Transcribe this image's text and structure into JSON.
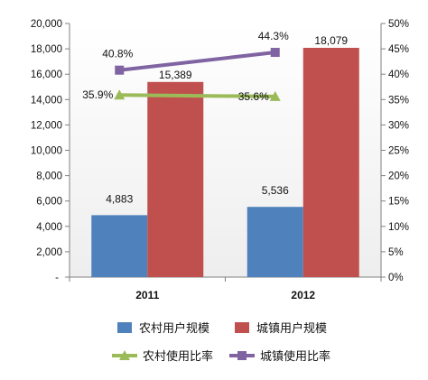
{
  "chart_data": {
    "type": "bar",
    "categories": [
      "2011",
      "2012"
    ],
    "y_left": {
      "range": [
        0,
        20000
      ],
      "ticks": [
        "-",
        "2,000",
        "4,000",
        "6,000",
        "8,000",
        "10,000",
        "12,000",
        "14,000",
        "16,000",
        "18,000",
        "20,000"
      ]
    },
    "y_right": {
      "range": [
        0,
        50
      ],
      "unit": "%",
      "ticks": [
        "0%",
        "5%",
        "10%",
        "15%",
        "20%",
        "25%",
        "30%",
        "35%",
        "40%",
        "45%",
        "50%"
      ]
    },
    "bar_series": [
      {
        "name": "农村用户规模",
        "values": [
          4883,
          5536
        ],
        "labels": [
          "4,883",
          "5,536"
        ],
        "color": "#4f81bd"
      },
      {
        "name": "城镇用户规模",
        "values": [
          15389,
          18079
        ],
        "labels": [
          "15,389",
          "18,079"
        ],
        "color": "#c0504d"
      }
    ],
    "line_series": [
      {
        "name": "农村使用比率",
        "values": [
          35.9,
          35.6
        ],
        "labels": [
          "35.9%",
          "35.6%"
        ],
        "color": "#9bbb59",
        "marker": "triangle"
      },
      {
        "name": "城镇使用比率",
        "values": [
          40.8,
          44.3
        ],
        "labels": [
          "40.8%",
          "44.3%"
        ],
        "color": "#8064a2",
        "marker": "square"
      }
    ],
    "grid": false,
    "legend": "bottom",
    "plot_background": "#eeeeee"
  }
}
